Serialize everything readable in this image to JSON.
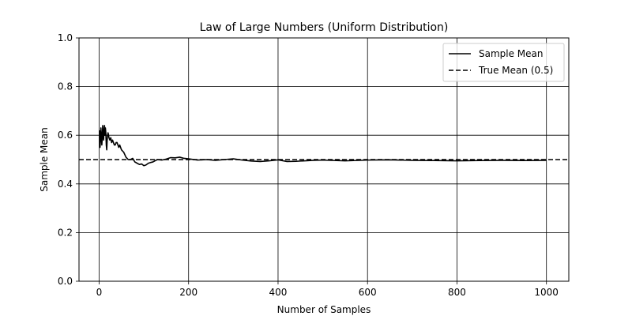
{
  "chart_data": {
    "type": "line",
    "title": "Law of Large Numbers (Uniform Distribution)",
    "xlabel": "Number of Samples",
    "ylabel": "Sample Mean",
    "xlim": [
      -45,
      1050
    ],
    "ylim": [
      0.0,
      1.0
    ],
    "xticks": [
      0,
      200,
      400,
      600,
      800,
      1000
    ],
    "yticks": [
      0.0,
      0.2,
      0.4,
      0.6,
      0.8,
      1.0
    ],
    "xtick_labels": [
      "0",
      "200",
      "400",
      "600",
      "800",
      "1000"
    ],
    "ytick_labels": [
      "0.0",
      "0.2",
      "0.4",
      "0.6",
      "0.8",
      "1.0"
    ],
    "grid": true,
    "legend_position": "upper right",
    "series": [
      {
        "name": "Sample Mean",
        "style": "solid",
        "color": "#000000",
        "x": [
          1,
          2,
          3,
          4,
          5,
          6,
          7,
          8,
          9,
          10,
          11,
          12,
          13,
          14,
          15,
          16,
          17,
          18,
          19,
          20,
          22,
          24,
          26,
          28,
          30,
          32,
          34,
          36,
          38,
          40,
          42,
          44,
          46,
          48,
          50,
          55,
          60,
          65,
          70,
          75,
          80,
          85,
          90,
          95,
          100,
          105,
          110,
          115,
          120,
          130,
          140,
          150,
          160,
          170,
          180,
          190,
          200,
          220,
          240,
          260,
          280,
          300,
          320,
          340,
          360,
          380,
          400,
          420,
          440,
          460,
          480,
          500,
          550,
          600,
          650,
          700,
          750,
          800,
          850,
          900,
          950,
          1000
        ],
        "y": [
          0.62,
          0.55,
          0.58,
          0.63,
          0.6,
          0.56,
          0.59,
          0.64,
          0.61,
          0.58,
          0.62,
          0.64,
          0.6,
          0.63,
          0.61,
          0.56,
          0.54,
          0.58,
          0.6,
          0.61,
          0.59,
          0.58,
          0.59,
          0.57,
          0.58,
          0.57,
          0.56,
          0.56,
          0.57,
          0.57,
          0.56,
          0.55,
          0.56,
          0.55,
          0.54,
          0.53,
          0.51,
          0.5,
          0.5,
          0.505,
          0.49,
          0.485,
          0.48,
          0.482,
          0.475,
          0.478,
          0.485,
          0.488,
          0.49,
          0.5,
          0.498,
          0.502,
          0.508,
          0.507,
          0.51,
          0.505,
          0.503,
          0.498,
          0.5,
          0.497,
          0.5,
          0.503,
          0.498,
          0.494,
          0.492,
          0.495,
          0.499,
          0.492,
          0.493,
          0.495,
          0.497,
          0.498,
          0.495,
          0.498,
          0.499,
          0.497,
          0.496,
          0.495,
          0.496,
          0.497,
          0.496,
          0.497
        ]
      },
      {
        "name": "True Mean (0.5)",
        "style": "dashed",
        "color": "#000000",
        "y_constant": 0.5
      }
    ]
  }
}
